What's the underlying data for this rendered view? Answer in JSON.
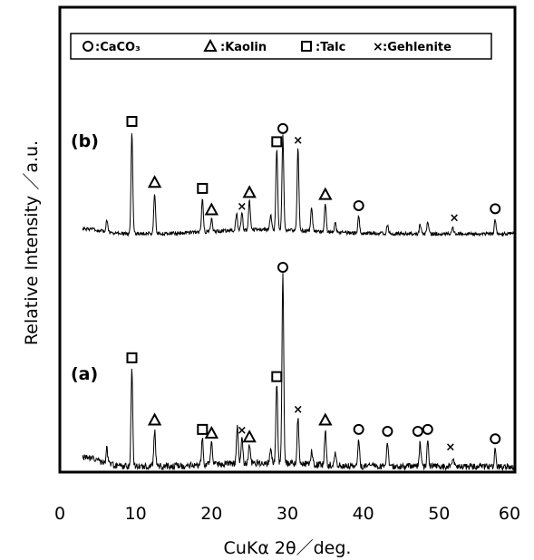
{
  "chart_data": {
    "type": "line",
    "xlabel": "CuKα 2θ／deg.",
    "ylabel": "Relative Intensity ／a.u.",
    "xlim": [
      0,
      60
    ],
    "x_ticks": [
      "0",
      "10",
      "20",
      "30",
      "40",
      "50",
      "60"
    ],
    "grid": false,
    "legend": {
      "placement": "top",
      "entries": [
        {
          "symbol": "circle",
          "label": ":CaCO₃"
        },
        {
          "symbol": "triangle",
          "label": ":Kaolin"
        },
        {
          "symbol": "square",
          "label": ":Talc"
        },
        {
          "symbol": "cross",
          "label": ":Gehlenite"
        }
      ]
    },
    "series": [
      {
        "name": "(b)",
        "peaks": [
          {
            "x": 6.2,
            "h": 0.12
          },
          {
            "x": 9.5,
            "h": 1.0
          },
          {
            "x": 12.5,
            "h": 0.4
          },
          {
            "x": 18.8,
            "h": 0.34
          },
          {
            "x": 20.0,
            "h": 0.13
          },
          {
            "x": 23.3,
            "h": 0.17
          },
          {
            "x": 24.0,
            "h": 0.17
          },
          {
            "x": 25.0,
            "h": 0.3
          },
          {
            "x": 27.8,
            "h": 0.15
          },
          {
            "x": 28.6,
            "h": 0.8
          },
          {
            "x": 29.4,
            "h": 0.93
          },
          {
            "x": 31.4,
            "h": 0.82
          },
          {
            "x": 33.2,
            "h": 0.24
          },
          {
            "x": 35.0,
            "h": 0.28
          },
          {
            "x": 36.3,
            "h": 0.1
          },
          {
            "x": 39.4,
            "h": 0.17
          },
          {
            "x": 43.2,
            "h": 0.08
          },
          {
            "x": 47.5,
            "h": 0.09
          },
          {
            "x": 48.5,
            "h": 0.11
          },
          {
            "x": 51.8,
            "h": 0.06
          },
          {
            "x": 57.4,
            "h": 0.14
          }
        ],
        "markers": [
          {
            "x": 9.5,
            "sym": "square"
          },
          {
            "x": 12.5,
            "sym": "triangle"
          },
          {
            "x": 18.8,
            "sym": "square"
          },
          {
            "x": 20.0,
            "sym": "triangle"
          },
          {
            "x": 24.0,
            "sym": "cross"
          },
          {
            "x": 25.0,
            "sym": "triangle"
          },
          {
            "x": 28.6,
            "sym": "square"
          },
          {
            "x": 29.4,
            "sym": "circle"
          },
          {
            "x": 31.4,
            "sym": "cross"
          },
          {
            "x": 35.0,
            "sym": "triangle"
          },
          {
            "x": 39.4,
            "sym": "circle"
          },
          {
            "x": 52.0,
            "sym": "cross"
          },
          {
            "x": 57.4,
            "sym": "circle"
          }
        ]
      },
      {
        "name": "(a)",
        "peaks": [
          {
            "x": 6.2,
            "h": 0.08
          },
          {
            "x": 9.5,
            "h": 0.52
          },
          {
            "x": 12.5,
            "h": 0.19
          },
          {
            "x": 18.8,
            "h": 0.14
          },
          {
            "x": 20.0,
            "h": 0.12
          },
          {
            "x": 23.4,
            "h": 0.2
          },
          {
            "x": 24.0,
            "h": 0.14
          },
          {
            "x": 25.0,
            "h": 0.1
          },
          {
            "x": 27.8,
            "h": 0.08
          },
          {
            "x": 28.6,
            "h": 0.42
          },
          {
            "x": 29.4,
            "h": 1.0
          },
          {
            "x": 31.4,
            "h": 0.25
          },
          {
            "x": 33.2,
            "h": 0.07
          },
          {
            "x": 35.0,
            "h": 0.19
          },
          {
            "x": 36.3,
            "h": 0.07
          },
          {
            "x": 39.4,
            "h": 0.14
          },
          {
            "x": 43.2,
            "h": 0.13
          },
          {
            "x": 47.5,
            "h": 0.13
          },
          {
            "x": 48.5,
            "h": 0.14
          },
          {
            "x": 51.8,
            "h": 0.05
          },
          {
            "x": 57.4,
            "h": 0.09
          }
        ],
        "markers": [
          {
            "x": 9.5,
            "sym": "square"
          },
          {
            "x": 12.5,
            "sym": "triangle"
          },
          {
            "x": 18.8,
            "sym": "square"
          },
          {
            "x": 20.0,
            "sym": "triangle"
          },
          {
            "x": 24.0,
            "sym": "cross"
          },
          {
            "x": 25.0,
            "sym": "triangle"
          },
          {
            "x": 28.6,
            "sym": "square"
          },
          {
            "x": 29.4,
            "sym": "circle"
          },
          {
            "x": 31.4,
            "sym": "cross"
          },
          {
            "x": 35.0,
            "sym": "triangle"
          },
          {
            "x": 39.4,
            "sym": "circle"
          },
          {
            "x": 43.2,
            "sym": "circle"
          },
          {
            "x": 47.2,
            "sym": "circle"
          },
          {
            "x": 48.5,
            "sym": "circle"
          },
          {
            "x": 51.5,
            "sym": "cross"
          },
          {
            "x": 57.4,
            "sym": "circle"
          }
        ]
      }
    ]
  }
}
